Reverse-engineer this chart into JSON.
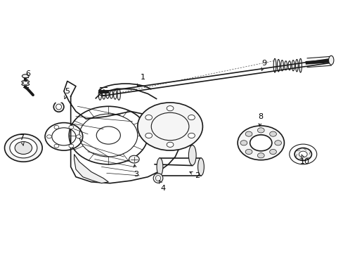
{
  "background_color": "#ffffff",
  "line_color": "#1a1a1a",
  "text_color": "#000000",
  "fig_width": 4.89,
  "fig_height": 3.6,
  "dpi": 100,
  "label_positions": {
    "1": {
      "text": [
        0.415,
        0.695
      ],
      "arrow": [
        0.395,
        0.648
      ]
    },
    "2": {
      "text": [
        0.575,
        0.305
      ],
      "arrow": [
        0.545,
        0.325
      ]
    },
    "3": {
      "text": [
        0.395,
        0.31
      ],
      "arrow": [
        0.39,
        0.36
      ]
    },
    "4": {
      "text": [
        0.475,
        0.255
      ],
      "arrow": [
        0.46,
        0.295
      ]
    },
    "5": {
      "text": [
        0.195,
        0.64
      ],
      "arrow": [
        0.185,
        0.6
      ]
    },
    "6": {
      "text": [
        0.08,
        0.71
      ],
      "arrow": [
        0.072,
        0.668
      ]
    },
    "7": {
      "text": [
        0.062,
        0.455
      ],
      "arrow": [
        0.068,
        0.415
      ]
    },
    "8": {
      "text": [
        0.76,
        0.54
      ],
      "arrow": [
        0.755,
        0.49
      ]
    },
    "9": {
      "text": [
        0.77,
        0.75
      ],
      "arrow": [
        0.762,
        0.72
      ]
    },
    "10": {
      "text": [
        0.888,
        0.36
      ],
      "arrow": [
        0.878,
        0.39
      ]
    }
  }
}
